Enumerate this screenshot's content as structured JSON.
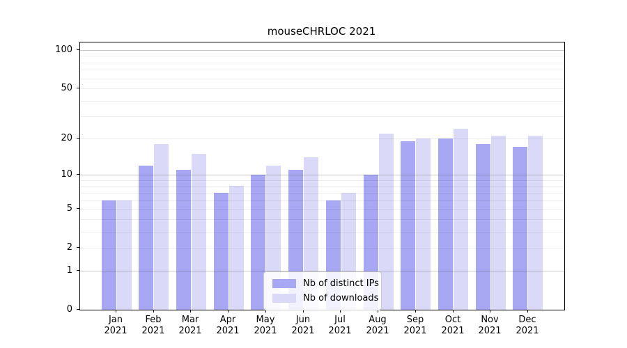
{
  "window": {
    "title": "mouseCHRLOC 2021"
  },
  "chart_data": {
    "type": "bar",
    "title": "mouseCHRLOC 2021",
    "categories": [
      {
        "month": "Jan",
        "year": "2021"
      },
      {
        "month": "Feb",
        "year": "2021"
      },
      {
        "month": "Mar",
        "year": "2021"
      },
      {
        "month": "Apr",
        "year": "2021"
      },
      {
        "month": "May",
        "year": "2021"
      },
      {
        "month": "Jun",
        "year": "2021"
      },
      {
        "month": "Jul",
        "year": "2021"
      },
      {
        "month": "Aug",
        "year": "2021"
      },
      {
        "month": "Sep",
        "year": "2021"
      },
      {
        "month": "Oct",
        "year": "2021"
      },
      {
        "month": "Nov",
        "year": "2021"
      },
      {
        "month": "Dec",
        "year": "2021"
      }
    ],
    "series": [
      {
        "name": "Nb of distinct IPs",
        "color": "#a7a7f3",
        "values": [
          6,
          12,
          11,
          7,
          10,
          11,
          6,
          10,
          19,
          20,
          18,
          17
        ]
      },
      {
        "name": "Nb of downloads",
        "color": "#dadaf8",
        "values": [
          6,
          18,
          15,
          8,
          12,
          14,
          7,
          22,
          20,
          24,
          21,
          21
        ]
      }
    ],
    "y_axis": {
      "tick_values": [
        0,
        1,
        2,
        5,
        10,
        20,
        50,
        100
      ],
      "tick_labels": [
        "0",
        "1",
        "2",
        "5",
        "10",
        "20",
        "50",
        "100"
      ],
      "scale": "log10(1+v)",
      "range": [
        0,
        115
      ],
      "major_grid_values": [
        1,
        10,
        100
      ],
      "minor_grid_values": [
        2,
        3,
        4,
        5,
        6,
        7,
        8,
        9,
        20,
        30,
        40,
        50,
        60,
        70,
        80,
        90
      ]
    },
    "x_axis": {
      "label": "",
      "tick_style": "month over year, two lines"
    },
    "grid": "horizontal, drawn above bars",
    "legend_position": "lower center",
    "colors": {
      "background": "#ffffff",
      "axis": "#000000",
      "grid_minor": "#ededed",
      "grid_major": "#c7c7c7",
      "legend_border": "#cccccc",
      "legend_background": "rgba(255,255,255,0.85)",
      "text": "#000000"
    }
  }
}
